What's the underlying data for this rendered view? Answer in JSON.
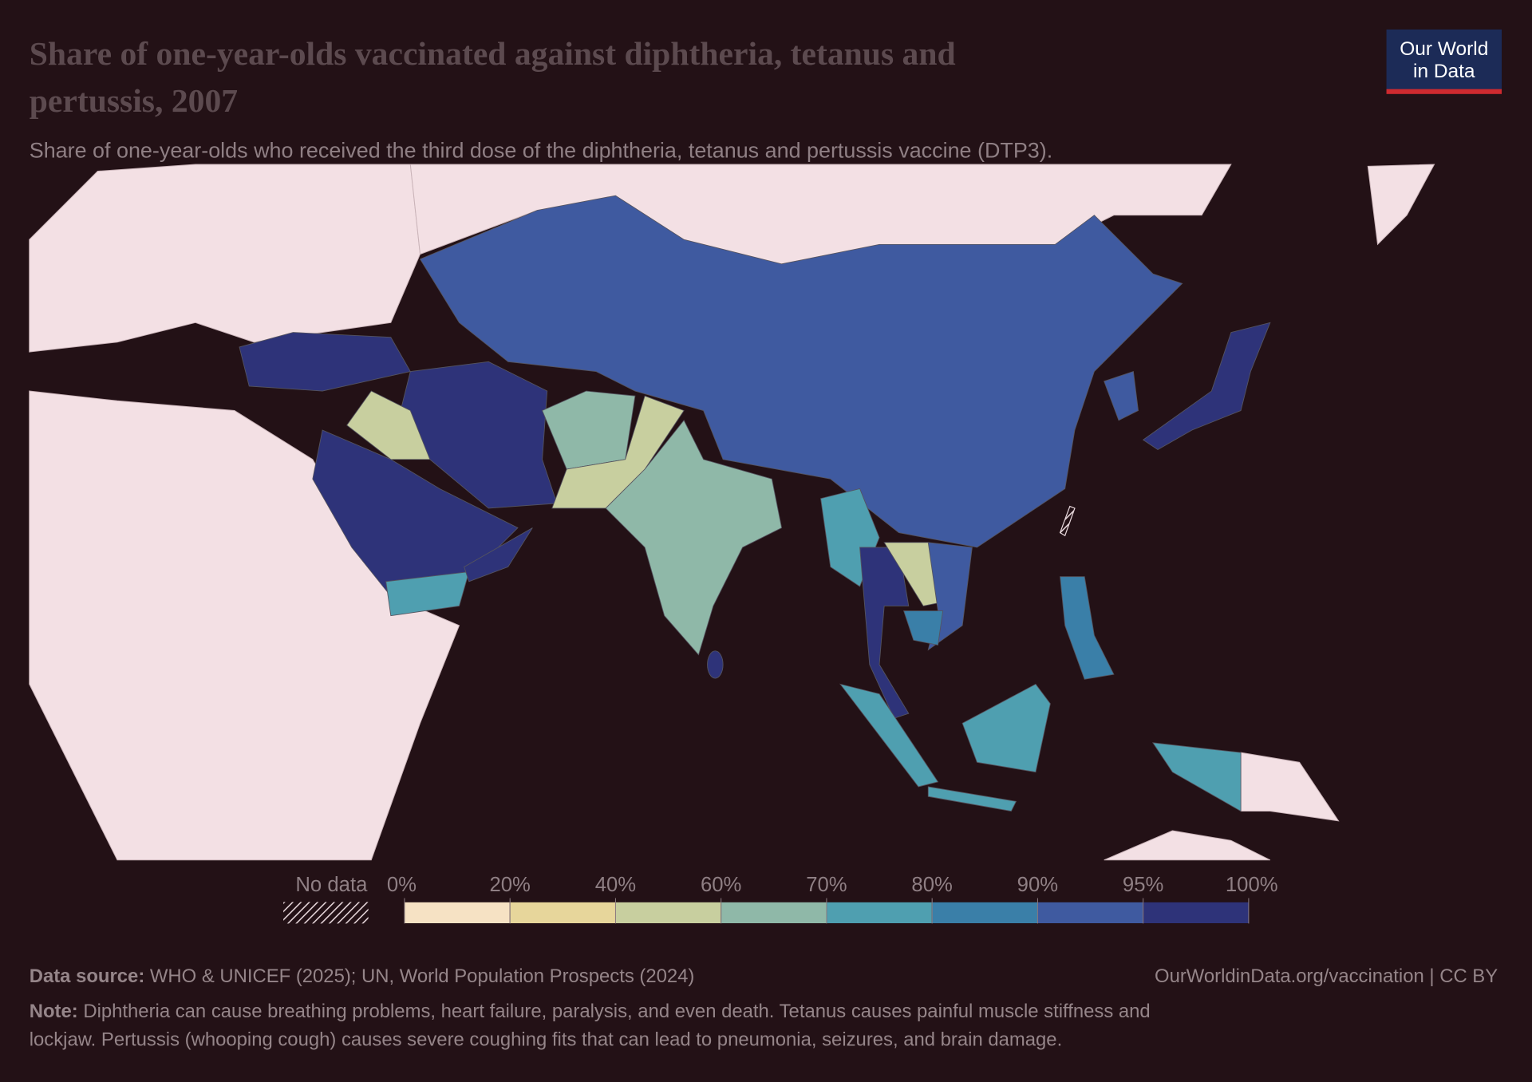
{
  "header": {
    "title": [
      "Share of one-year-olds vaccinated against diphtheria, tetanus and",
      "pertussis, 2007"
    ],
    "subtitle": "Share of one-year-olds who received the third dose of the diphtheria, tetanus and pertussis vaccine (DTP3).",
    "logo": [
      "Our World",
      "in Data"
    ]
  },
  "legend": {
    "no_data": "No data",
    "tick_labels": [
      "0%",
      "20%",
      "40%",
      "60%",
      "70%",
      "80%",
      "90%",
      "95%",
      "100%"
    ],
    "colors": [
      "#f6e2c4",
      "#e7d69b",
      "#c8cf9f",
      "#8fb8a8",
      "#4f9fb0",
      "#3a7fa8",
      "#3f5aa0",
      "#2e3379"
    ]
  },
  "footer": {
    "source": {
      "label": "Data source:",
      "text": "WHO & UNICEF (2025); UN, World Population Prospects (2024)"
    },
    "url": "OurWorldinData.org/vaccination | CC BY",
    "note": {
      "label": "Note:",
      "lines": [
        "Diphtheria can cause breathing problems, heart failure, paralysis, and even death. Tetanus causes painful muscle stiffness and",
        "lockjaw. Pertussis (whooping cough) causes severe coughing fits that can lead to pneumonia, seizures, and brain damage."
      ]
    }
  }
}
